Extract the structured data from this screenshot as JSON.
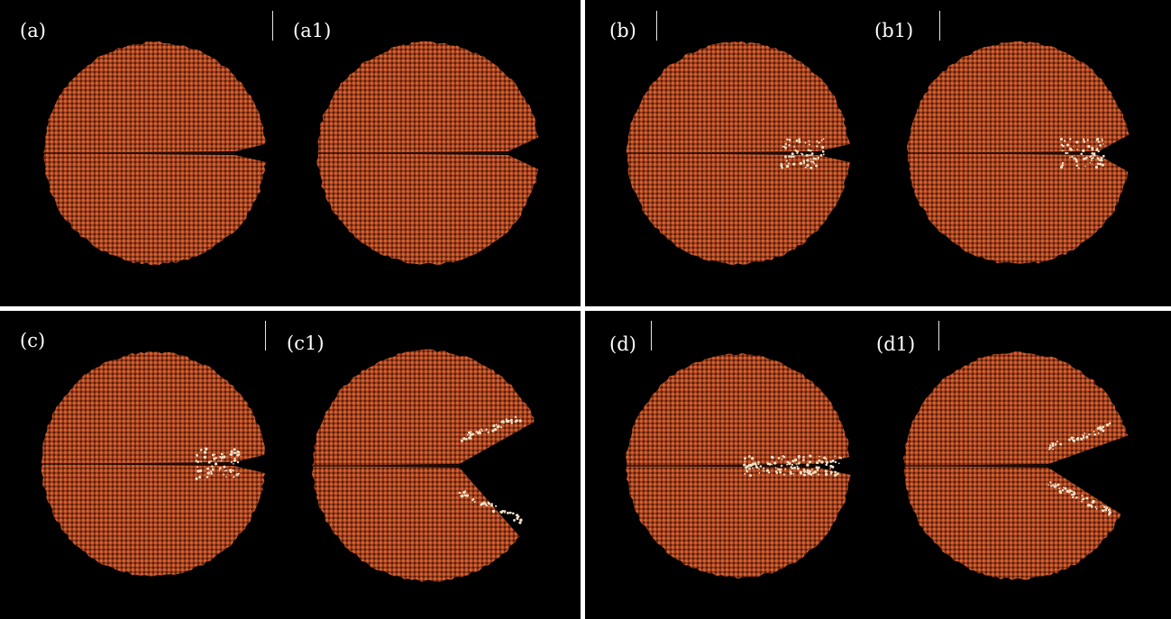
{
  "panels": [
    {
      "id": "a",
      "labels": [
        "(a)",
        "(a1)"
      ],
      "crack_state": [
        "initial notch",
        "initial notch"
      ]
    },
    {
      "id": "b",
      "labels": [
        "(b)",
        "(b1)"
      ],
      "crack_state": [
        "damage zone at notch tip",
        "damage zone at notch tip"
      ]
    },
    {
      "id": "c",
      "labels": [
        "(c)",
        "(c1)"
      ],
      "crack_state": [
        "damage zone at notch tip",
        "crack opened widely"
      ]
    },
    {
      "id": "d",
      "labels": [
        "(d)",
        "(d1)"
      ],
      "crack_state": [
        "damage spread along interface",
        "crack propagated"
      ]
    }
  ],
  "colors": {
    "background": "#000000",
    "separator": "#ffffff",
    "atom": "#c8562a",
    "atom_highlight": "#e06a38",
    "damaged_atom": "#f2e2c8",
    "label_text": "#ffffff"
  }
}
